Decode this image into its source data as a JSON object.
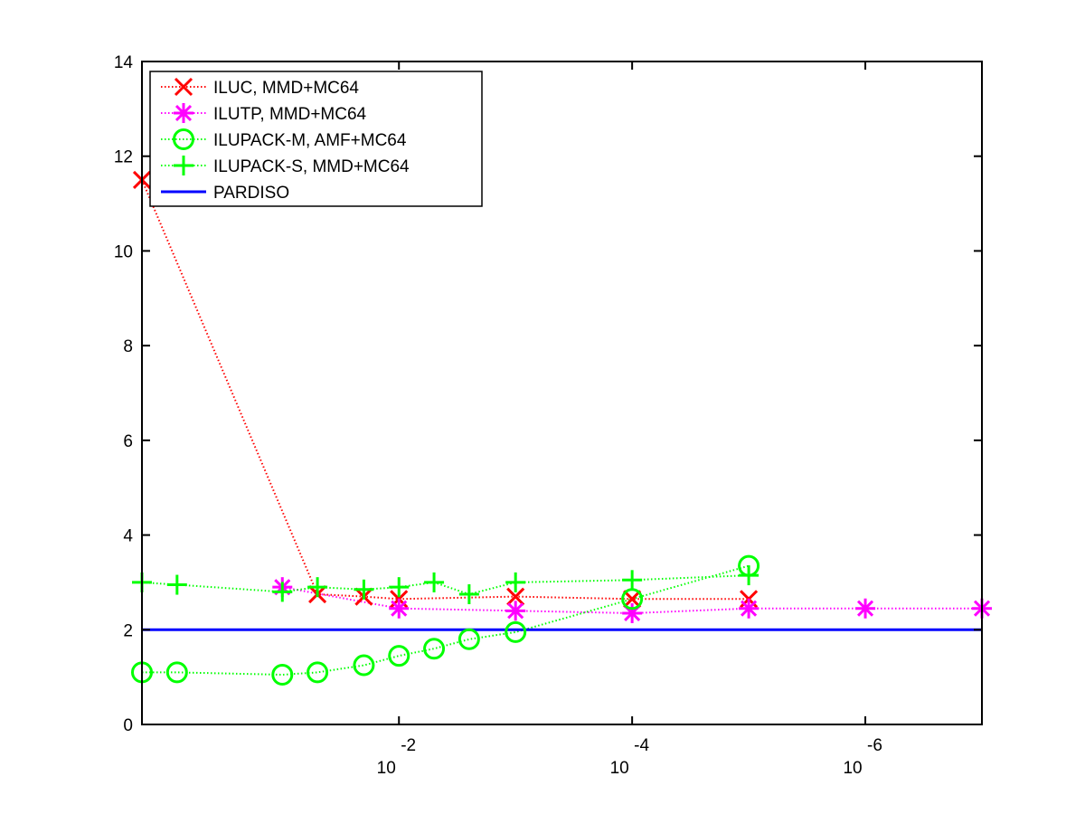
{
  "chart_data": {
    "type": "line",
    "title": "",
    "xlabel": "",
    "ylabel": "",
    "x_scale": "log",
    "x_reversed": true,
    "x_values_note": "x is the drop tolerance; decreasing to the right",
    "xlim": [
      1.6,
      1e-07
    ],
    "ylim": [
      0,
      14
    ],
    "x_ticks": [
      {
        "value": 0.01,
        "base": "10",
        "exp": "-2"
      },
      {
        "value": 0.0001,
        "base": "10",
        "exp": "-4"
      },
      {
        "value": 1e-06,
        "base": "10",
        "exp": "-6"
      }
    ],
    "y_ticks": [
      {
        "value": 0,
        "label": "0"
      },
      {
        "value": 2,
        "label": "2"
      },
      {
        "value": 4,
        "label": "4"
      },
      {
        "value": 6,
        "label": "6"
      },
      {
        "value": 8,
        "label": "8"
      },
      {
        "value": 10,
        "label": "10"
      },
      {
        "value": 12,
        "label": "12"
      },
      {
        "value": 14,
        "label": "14"
      }
    ],
    "grid": false,
    "legend_position": "top-left",
    "series": [
      {
        "name": "ILUC, MMD+MC64",
        "color": "#ff0000",
        "marker": "x",
        "line_style": "dotted",
        "points": [
          [
            1.6,
            11.5
          ],
          [
            0.05,
            2.75
          ],
          [
            0.02,
            2.7
          ],
          [
            0.01,
            2.65
          ],
          [
            0.001,
            2.7
          ],
          [
            0.0001,
            2.65
          ],
          [
            1e-05,
            2.65
          ]
        ]
      },
      {
        "name": "ILUTP, MMD+MC64",
        "color": "#ff00ff",
        "marker": "asterisk",
        "line_style": "dotted",
        "points": [
          [
            0.1,
            2.9
          ],
          [
            0.01,
            2.45
          ],
          [
            0.001,
            2.4
          ],
          [
            0.0001,
            2.35
          ],
          [
            1e-05,
            2.45
          ],
          [
            1e-06,
            2.45
          ],
          [
            1e-07,
            2.45
          ]
        ]
      },
      {
        "name": "ILUPACK-M, AMF+MC64",
        "color": "#00ff00",
        "marker": "circle",
        "line_style": "dotted",
        "points": [
          [
            1.6,
            1.1
          ],
          [
            0.8,
            1.1
          ],
          [
            0.1,
            1.05
          ],
          [
            0.05,
            1.1
          ],
          [
            0.02,
            1.25
          ],
          [
            0.01,
            1.45
          ],
          [
            0.005,
            1.6
          ],
          [
            0.0025,
            1.8
          ],
          [
            0.001,
            1.95
          ],
          [
            0.0001,
            2.65
          ],
          [
            1e-05,
            3.35
          ]
        ]
      },
      {
        "name": "ILUPACK-S, MMD+MC64",
        "color": "#00ff00",
        "marker": "plus",
        "line_style": "dotted",
        "points": [
          [
            1.6,
            3.0
          ],
          [
            0.8,
            2.95
          ],
          [
            0.1,
            2.8
          ],
          [
            0.05,
            2.9
          ],
          [
            0.02,
            2.85
          ],
          [
            0.01,
            2.9
          ],
          [
            0.005,
            3.0
          ],
          [
            0.0025,
            2.75
          ],
          [
            0.001,
            3.0
          ],
          [
            0.0001,
            3.05
          ],
          [
            1e-05,
            3.15
          ]
        ]
      },
      {
        "name": "PARDISO",
        "color": "#0000ff",
        "marker": "none",
        "line_style": "solid",
        "points": [
          [
            1.6,
            2.0
          ],
          [
            1e-07,
            2.0
          ]
        ]
      }
    ]
  }
}
